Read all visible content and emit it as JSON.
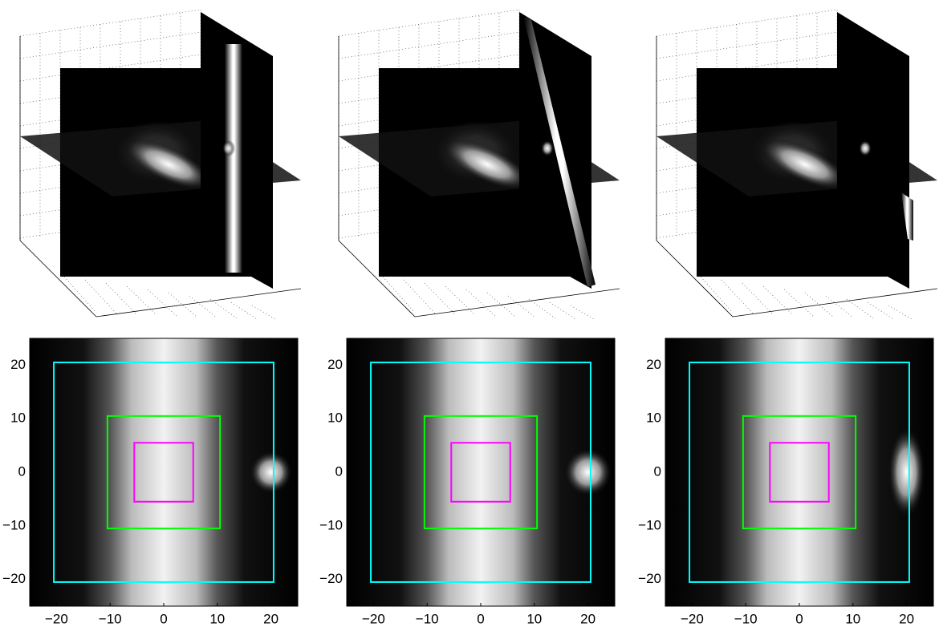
{
  "chart_data": [
    {
      "type": "image",
      "xlim": [
        -25,
        25
      ],
      "ylim": [
        -25,
        25
      ],
      "xticks": [
        {
          "value": -20,
          "label": "−20"
        },
        {
          "value": -10,
          "label": "−10"
        },
        0,
        10,
        20
      ],
      "yticks": [
        {
          "value": -20,
          "label": "−20"
        },
        {
          "value": -10,
          "label": "−10"
        },
        0,
        10,
        20
      ],
      "rectangles": [
        {
          "color": "#00ffff",
          "x": [
            -20.5,
            20.5
          ],
          "y": [
            -20.5,
            20.5
          ]
        },
        {
          "color": "#00ff00",
          "x": [
            -10.5,
            10.5
          ],
          "y": [
            -10.5,
            10.5
          ]
        },
        {
          "color": "#ff00ff",
          "x": [
            -5.5,
            5.5
          ],
          "y": [
            -5.5,
            5.5
          ]
        }
      ]
    },
    {
      "type": "image",
      "xlim": [
        -25,
        25
      ],
      "ylim": [
        -25,
        25
      ],
      "xticks": [
        {
          "value": -20,
          "label": "−20"
        },
        {
          "value": -10,
          "label": "−10"
        },
        0,
        10,
        20
      ],
      "yticks": [
        {
          "value": -20,
          "label": "−20"
        },
        {
          "value": -10,
          "label": "−10"
        },
        0,
        10,
        20
      ],
      "rectangles": [
        {
          "color": "#00ffff",
          "x": [
            -20.5,
            20.5
          ],
          "y": [
            -20.5,
            20.5
          ]
        },
        {
          "color": "#00ff00",
          "x": [
            -10.5,
            10.5
          ],
          "y": [
            -10.5,
            10.5
          ]
        },
        {
          "color": "#ff00ff",
          "x": [
            -5.5,
            5.5
          ],
          "y": [
            -5.5,
            5.5
          ]
        }
      ]
    },
    {
      "type": "image",
      "xlim": [
        -25,
        25
      ],
      "ylim": [
        -25,
        25
      ],
      "xticks": [
        {
          "value": -20,
          "label": "−20"
        },
        {
          "value": -10,
          "label": "−10"
        },
        0,
        10,
        20
      ],
      "yticks": [
        {
          "value": -20,
          "label": "−20"
        },
        {
          "value": -10,
          "label": "−10"
        },
        0,
        10,
        20
      ],
      "rectangles": [
        {
          "color": "#00ffff",
          "x": [
            -20.5,
            20.5
          ],
          "y": [
            -20.5,
            20.5
          ]
        },
        {
          "color": "#00ff00",
          "x": [
            -10.5,
            10.5
          ],
          "y": [
            -10.5,
            10.5
          ]
        },
        {
          "color": "#ff00ff",
          "x": [
            -5.5,
            5.5
          ],
          "y": [
            -5.5,
            5.5
          ]
        }
      ]
    }
  ]
}
